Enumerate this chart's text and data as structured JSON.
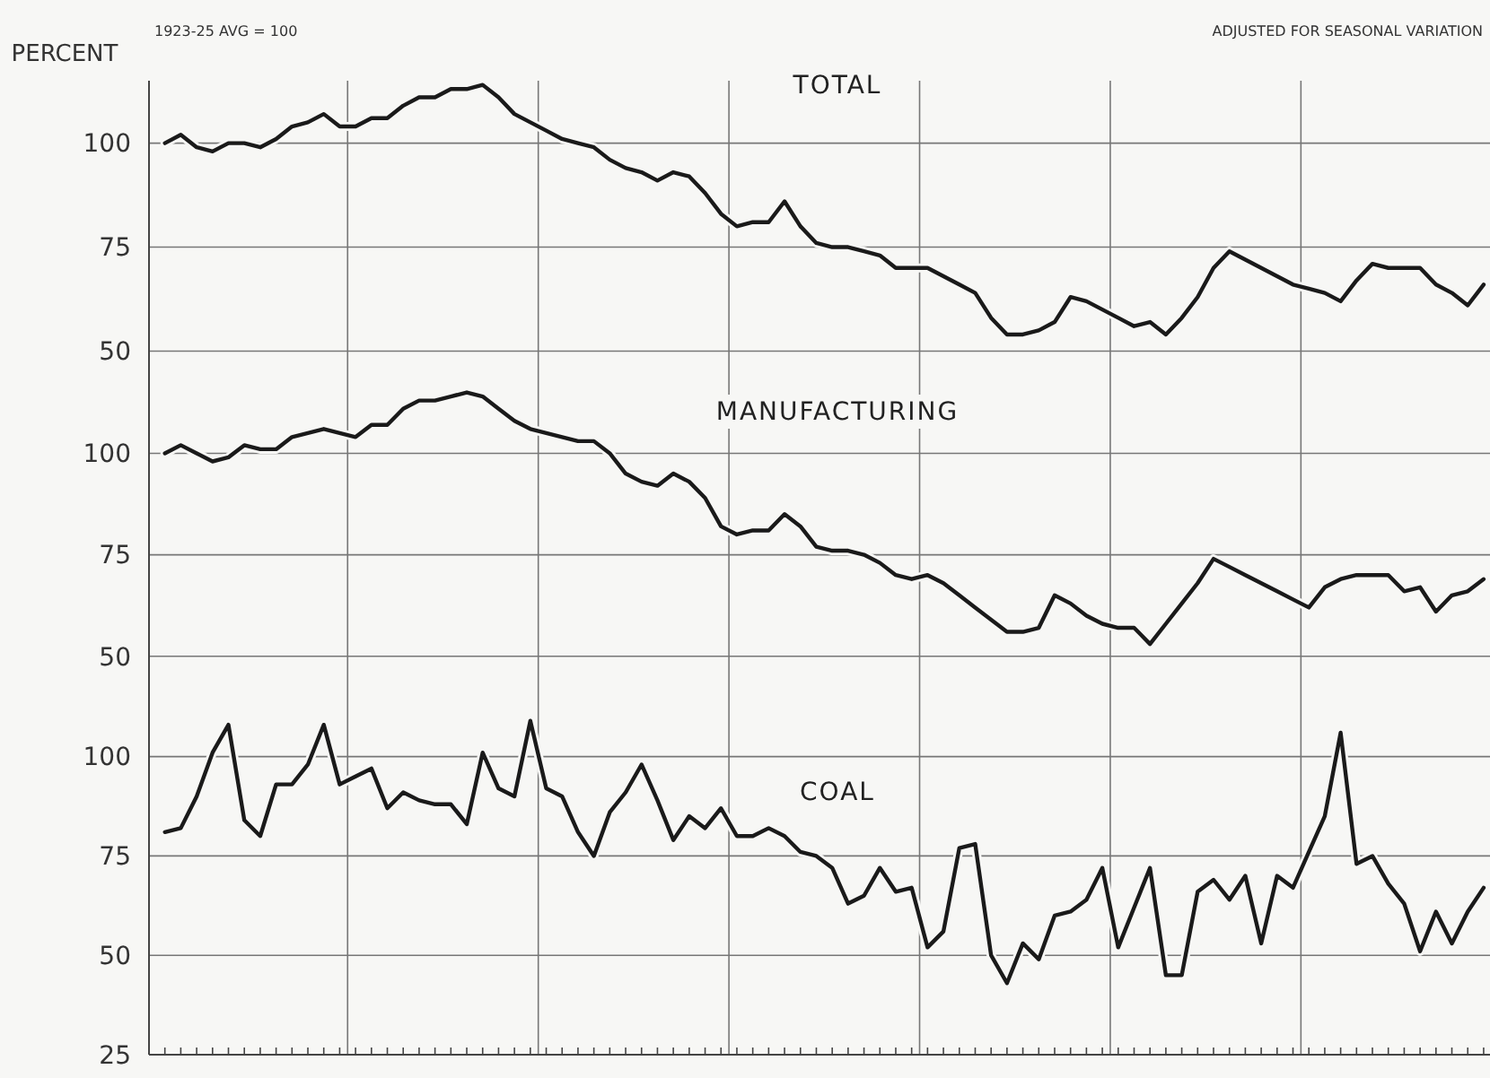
{
  "chart_data": [
    {
      "type": "line",
      "title": "TOTAL",
      "ylabel": "PERCENT",
      "annotations": [
        "1923-25 AVG = 100",
        "ADJUSTED FOR SEASONAL VARIATION"
      ],
      "categories": [
        null,
        null,
        null,
        null,
        null,
        null,
        null,
        null,
        null,
        null,
        null,
        null,
        null,
        null,
        null,
        null,
        null,
        null,
        null,
        null,
        null,
        null,
        null,
        null,
        null,
        null,
        null,
        null,
        null,
        null,
        null,
        null,
        null,
        null,
        null,
        null,
        null,
        null,
        null,
        null,
        null,
        null,
        null,
        null,
        null,
        null,
        null,
        null,
        null,
        null,
        null,
        null,
        null,
        null,
        null,
        null,
        null,
        null,
        null,
        null,
        null,
        null,
        null,
        null,
        null,
        null,
        null,
        null,
        null,
        null,
        null,
        null,
        null,
        null,
        null,
        null,
        null,
        null,
        null,
        null,
        null,
        null,
        null,
        null
      ],
      "series": [
        {
          "color": "#1a1a1a",
          "values": [
            100,
            102,
            99,
            98,
            100,
            100,
            99,
            101,
            104,
            105,
            107,
            104,
            104,
            106,
            106,
            109,
            111,
            111,
            113,
            113,
            114,
            111,
            107,
            105,
            103,
            101,
            100,
            99,
            96,
            94,
            93,
            91,
            93,
            92,
            88,
            83,
            80,
            81,
            81,
            86,
            80,
            76,
            75,
            75,
            74,
            73,
            70,
            70,
            70,
            68,
            66,
            64,
            58,
            54,
            54,
            55,
            57,
            63,
            62,
            60,
            58,
            56,
            57,
            54,
            58,
            63,
            70,
            74,
            72,
            70,
            68,
            66,
            65,
            64,
            62,
            67,
            71,
            70,
            70,
            70,
            66,
            64,
            61,
            66
          ]
        }
      ],
      "ylim": [
        43,
        115
      ],
      "yticks": [
        50,
        75,
        100
      ],
      "grid": true,
      "tick_labels": "y"
    },
    {
      "type": "line",
      "title": "MANUFACTURING",
      "categories": [
        null,
        null,
        null,
        null,
        null,
        null,
        null,
        null,
        null,
        null,
        null,
        null,
        null,
        null,
        null,
        null,
        null,
        null,
        null,
        null,
        null,
        null,
        null,
        null,
        null,
        null,
        null,
        null,
        null,
        null,
        null,
        null,
        null,
        null,
        null,
        null,
        null,
        null,
        null,
        null,
        null,
        null,
        null,
        null,
        null,
        null,
        null,
        null,
        null,
        null,
        null,
        null,
        null,
        null,
        null,
        null,
        null,
        null,
        null,
        null,
        null,
        null,
        null,
        null,
        null,
        null,
        null,
        null,
        null,
        null,
        null,
        null,
        null,
        null,
        null,
        null,
        null,
        null,
        null,
        null,
        null,
        null,
        null,
        null
      ],
      "series": [
        {
          "color": "#1a1a1a",
          "values": [
            100,
            102,
            100,
            98,
            99,
            102,
            101,
            101,
            104,
            105,
            106,
            105,
            104,
            107,
            107,
            111,
            113,
            113,
            114,
            115,
            114,
            111,
            108,
            106,
            105,
            104,
            103,
            103,
            100,
            95,
            93,
            92,
            95,
            93,
            89,
            82,
            80,
            81,
            81,
            85,
            82,
            77,
            76,
            76,
            75,
            73,
            70,
            69,
            70,
            68,
            65,
            62,
            59,
            56,
            56,
            57,
            65,
            63,
            60,
            58,
            57,
            57,
            53,
            58,
            63,
            68,
            74,
            72,
            70,
            68,
            66,
            64,
            62,
            67,
            69,
            70,
            70,
            70,
            66,
            67,
            61,
            65,
            66,
            69
          ]
        }
      ],
      "ylim": [
        38,
        118
      ],
      "yticks": [
        50,
        75,
        100
      ],
      "grid": true,
      "tick_labels": "y"
    },
    {
      "type": "line",
      "title": "COAL",
      "categories": [
        null,
        null,
        null,
        null,
        null,
        null,
        null,
        null,
        null,
        null,
        null,
        null,
        null,
        null,
        null,
        null,
        null,
        null,
        null,
        null,
        null,
        null,
        null,
        null,
        null,
        null,
        null,
        null,
        null,
        null,
        null,
        null,
        null,
        null,
        null,
        null,
        null,
        null,
        null,
        null,
        null,
        null,
        null,
        null,
        null,
        null,
        null,
        null,
        null,
        null,
        null,
        null,
        null,
        null,
        null,
        null,
        null,
        null,
        null,
        null,
        null,
        null,
        null,
        null,
        null,
        null,
        null,
        null,
        null,
        null,
        null,
        null,
        null,
        null,
        null,
        null,
        null,
        null,
        null,
        null,
        null,
        null,
        null,
        null
      ],
      "series": [
        {
          "color": "#1a1a1a",
          "values": [
            81,
            82,
            90,
            101,
            108,
            84,
            80,
            93,
            93,
            98,
            108,
            93,
            95,
            97,
            87,
            91,
            89,
            88,
            88,
            83,
            101,
            92,
            90,
            109,
            92,
            90,
            81,
            75,
            86,
            91,
            98,
            89,
            79,
            85,
            82,
            87,
            80,
            80,
            82,
            80,
            76,
            75,
            72,
            63,
            65,
            72,
            66,
            67,
            52,
            56,
            77,
            78,
            50,
            43,
            53,
            49,
            60,
            61,
            64,
            72,
            52,
            62,
            72,
            45,
            45,
            66,
            69,
            64,
            70,
            53,
            70,
            67,
            76,
            85,
            106,
            73,
            75,
            68,
            63,
            51,
            61,
            53,
            61,
            67
          ]
        }
      ],
      "ylim": [
        25,
        113
      ],
      "yticks": [
        25,
        50,
        75,
        100
      ],
      "grid": true,
      "tick_labels": "y"
    }
  ]
}
